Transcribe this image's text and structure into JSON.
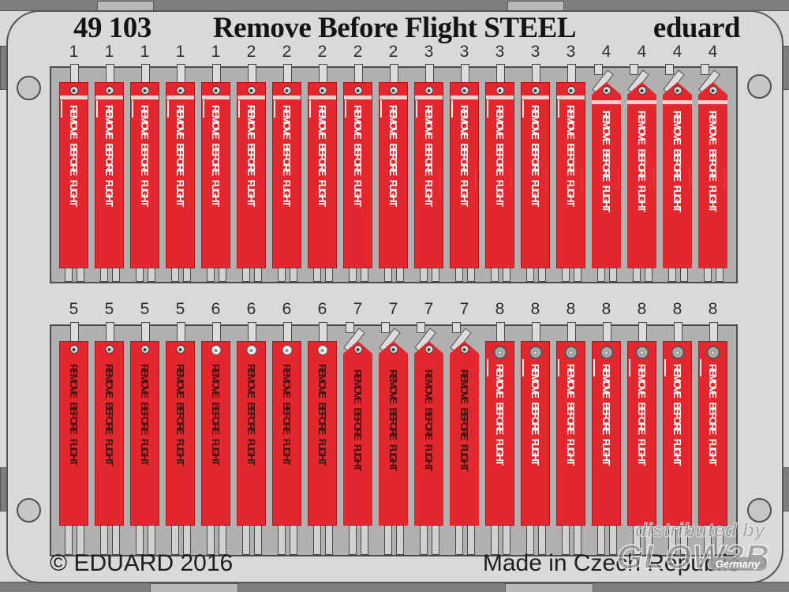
{
  "header": {
    "catalog_no": "49 103",
    "title": "Remove Before Flight STEEL",
    "brand": "eduard"
  },
  "tag_label": "REMOVE BEFORE FLIGHT",
  "micro_text": "·········· ··········",
  "footer": {
    "copyright": "© EDUARD 2016",
    "origin": "Made in Czech Republic"
  },
  "watermark": {
    "prefix": "distributed by",
    "name": "GLOW2B",
    "region": "Germany"
  },
  "colors": {
    "tag_red": "#e2282e",
    "tag_border": "#a8181c",
    "plate_gray": "#d9d9d9",
    "window_gray": "#b1afaf",
    "frame_gray": "#7e7e7e",
    "outline": "#4a4a4a",
    "text_light": "#ffffff",
    "text_dark": "#401312"
  },
  "sheet": {
    "rows": [
      {
        "side": "top",
        "groups": [
          {
            "number": "1",
            "count": 5,
            "peaked": false,
            "text": "light",
            "stripe": true,
            "micro": false,
            "grommet": "screw"
          },
          {
            "number": "2",
            "count": 5,
            "peaked": false,
            "text": "light",
            "stripe": true,
            "micro": false,
            "grommet": "screw"
          },
          {
            "number": "3",
            "count": 5,
            "peaked": false,
            "text": "light",
            "stripe": true,
            "micro": true,
            "grommet": "screw"
          },
          {
            "number": "4",
            "count": 4,
            "peaked": true,
            "text": "light",
            "stripe": true,
            "micro": true,
            "grommet": "screw"
          }
        ]
      },
      {
        "side": "bottom",
        "groups": [
          {
            "number": "5",
            "count": 4,
            "peaked": false,
            "text": "dark",
            "stripe": false,
            "micro": false,
            "grommet": "screw"
          },
          {
            "number": "6",
            "count": 4,
            "peaked": false,
            "text": "dark",
            "stripe": false,
            "micro": false,
            "grommet": "ring"
          },
          {
            "number": "7",
            "count": 4,
            "peaked": true,
            "text": "dark",
            "stripe": false,
            "micro": false,
            "grommet": "screw"
          },
          {
            "number": "8",
            "count": 7,
            "peaked": false,
            "text": "light",
            "stripe": false,
            "micro": false,
            "grommet": "big"
          }
        ]
      }
    ]
  }
}
